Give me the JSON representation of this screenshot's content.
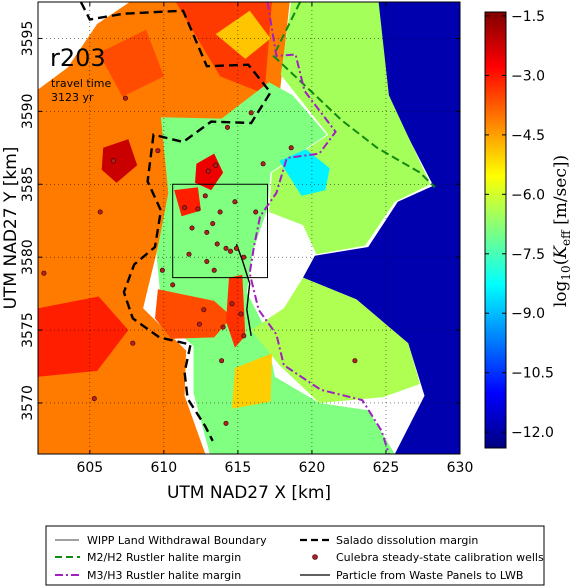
{
  "chart_data": {
    "type": "heatmap",
    "run_label": "r203",
    "annotation_line1": "travel time",
    "annotation_line2": "3123 yr",
    "xlabel": "UTM NAD27 X [km]",
    "ylabel": "UTM NAD27 Y [km]",
    "xlim": [
      601.5,
      630
    ],
    "ylim": [
      3566.5,
      3597.5
    ],
    "xticks": [
      605,
      610,
      615,
      620,
      625,
      630
    ],
    "yticks": [
      3570,
      3575,
      3580,
      3585,
      3590,
      3595
    ],
    "grid": true,
    "colorbar": {
      "label_prefix": "log",
      "label_sub": "10",
      "label_var": "K",
      "label_var_sub": "eff",
      "label_unit": "[m/sec]",
      "min": -12.4,
      "max": -1.4,
      "ticks": [
        -1.5,
        -3.0,
        -4.5,
        -6.0,
        -7.5,
        -9.0,
        -10.5,
        -12.0
      ],
      "tick_labels": [
        "−1.5",
        "−3.0",
        "−4.5",
        "−6.0",
        "−7.5",
        "−9.0",
        "−10.5",
        "−12.0"
      ],
      "colormap": "jet"
    },
    "wipp_boundary": [
      [
        610.6,
        3578.6
      ],
      [
        617.0,
        3578.6
      ],
      [
        617.0,
        3585.0
      ],
      [
        610.6,
        3585.0
      ]
    ],
    "wells": [
      [
        607.4,
        3590.9
      ],
      [
        606.6,
        3586.6
      ],
      [
        609.6,
        3587.3
      ],
      [
        614.3,
        3588.9
      ],
      [
        615.9,
        3589.9
      ],
      [
        612.8,
        3584.2
      ],
      [
        613.0,
        3585.9
      ],
      [
        613.5,
        3586.3
      ],
      [
        612.3,
        3583.3
      ],
      [
        613.8,
        3583.1
      ],
      [
        614.8,
        3583.8
      ],
      [
        616.2,
        3583.1
      ],
      [
        611.4,
        3583.4
      ],
      [
        611.9,
        3582.0
      ],
      [
        612.9,
        3581.7
      ],
      [
        613.6,
        3580.9
      ],
      [
        614.2,
        3580.6
      ],
      [
        614.9,
        3580.6
      ],
      [
        611.7,
        3580.2
      ],
      [
        612.9,
        3579.7
      ],
      [
        613.4,
        3579.1
      ],
      [
        615.4,
        3580.0
      ],
      [
        614.5,
        3580.4
      ],
      [
        605.7,
        3583.1
      ],
      [
        601.9,
        3578.9
      ],
      [
        610.6,
        3578.1
      ],
      [
        612.7,
        3576.4
      ],
      [
        614.6,
        3576.8
      ],
      [
        615.2,
        3576.1
      ],
      [
        615.4,
        3574.6
      ],
      [
        614.0,
        3575.2
      ],
      [
        612.4,
        3575.4
      ],
      [
        607.9,
        3574.1
      ],
      [
        613.9,
        3572.9
      ],
      [
        605.3,
        3570.3
      ],
      [
        614.2,
        3568.6
      ],
      [
        622.9,
        3572.9
      ],
      [
        618.6,
        3587.5
      ],
      [
        616.7,
        3586.4
      ],
      [
        609.9,
        3579.1
      ],
      [
        613.3,
        3582.3
      ]
    ],
    "salado_margin": [
      [
        604.4,
        3597.5
      ],
      [
        605.0,
        3596.3
      ],
      [
        607.3,
        3596.7
      ],
      [
        611.3,
        3596.9
      ],
      [
        612.9,
        3593.1
      ],
      [
        615.7,
        3593.2
      ],
      [
        617.2,
        3591.3
      ],
      [
        615.9,
        3589.2
      ],
      [
        613.2,
        3589.3
      ],
      [
        611.3,
        3587.9
      ],
      [
        609.3,
        3588.4
      ],
      [
        608.9,
        3585.2
      ],
      [
        609.8,
        3583.2
      ],
      [
        609.4,
        3580.7
      ],
      [
        608.0,
        3579.5
      ],
      [
        607.3,
        3577.6
      ],
      [
        607.9,
        3575.8
      ],
      [
        609.7,
        3574.5
      ],
      [
        611.8,
        3574.0
      ],
      [
        611.4,
        3572.1
      ],
      [
        611.6,
        3570.3
      ],
      [
        612.8,
        3568.4
      ],
      [
        613.3,
        3567.4
      ]
    ],
    "m2h2_margin": [
      [
        619.2,
        3597.5
      ],
      [
        617.4,
        3593.8
      ],
      [
        619.5,
        3591.8
      ],
      [
        622.0,
        3589.4
      ],
      [
        624.4,
        3587.5
      ],
      [
        627.3,
        3585.8
      ],
      [
        628.3,
        3584.8
      ]
    ],
    "m3h3_margin": [
      [
        617.0,
        3597.5
      ],
      [
        617.6,
        3593.8
      ],
      [
        618.9,
        3593.9
      ],
      [
        619.5,
        3591.4
      ],
      [
        621.6,
        3588.6
      ],
      [
        620.5,
        3587.1
      ],
      [
        618.3,
        3586.8
      ],
      [
        617.6,
        3584.4
      ],
      [
        616.5,
        3582.8
      ],
      [
        616.1,
        3580.8
      ],
      [
        615.8,
        3578.9
      ],
      [
        616.4,
        3576.4
      ],
      [
        617.6,
        3574.7
      ],
      [
        618.1,
        3572.6
      ],
      [
        620.6,
        3570.9
      ],
      [
        623.4,
        3570.2
      ],
      [
        624.7,
        3568.1
      ],
      [
        625.2,
        3566.5
      ]
    ],
    "particle_path": [
      [
        614.9,
        3580.9
      ],
      [
        615.3,
        3579.8
      ],
      [
        615.8,
        3578.2
      ],
      [
        615.6,
        3576.4
      ],
      [
        615.9,
        3574.6
      ]
    ],
    "legend_placement": "below plot",
    "legend": [
      {
        "label": "WIPP Land Withdrawal Boundary",
        "style": "thin-solid",
        "color": "#000000"
      },
      {
        "label": "Salado dissolution margin",
        "style": "dashed",
        "color": "#000000"
      },
      {
        "label": "M2/H2 Rustler halite margin",
        "style": "dashed",
        "color": "#108a10"
      },
      {
        "label": "Culebra steady-state calibration wells",
        "style": "dot",
        "color": "#b02020"
      },
      {
        "label": "M3/H3 Rustler halite margin",
        "style": "dashdot",
        "color": "#a020c0"
      },
      {
        "label": "Particle from Waste Panels to LWB",
        "style": "solid",
        "color": "#000000"
      }
    ],
    "field_regions": [
      {
        "name": "region-low-k-east",
        "value": -11.9,
        "poly": [
          [
            630,
            3566.5
          ],
          [
            630,
            3597.5
          ],
          [
            624.3,
            3597.5
          ],
          [
            625.1,
            3591.0
          ],
          [
            628.2,
            3584.9
          ],
          [
            625.8,
            3583.8
          ],
          [
            623.8,
            3580.7
          ],
          [
            620.2,
            3580.1
          ],
          [
            619.4,
            3578.6
          ],
          [
            623.0,
            3577.1
          ],
          [
            626.5,
            3574.1
          ],
          [
            627.6,
            3570.5
          ],
          [
            625.6,
            3566.5
          ]
        ]
      },
      {
        "name": "region-west-plain",
        "value": -4.1,
        "poly": [
          [
            601.5,
            3566.5
          ],
          [
            601.5,
            3591.5
          ],
          [
            603.5,
            3593.0
          ],
          [
            605.5,
            3596.0
          ],
          [
            607.7,
            3597.5
          ],
          [
            618.5,
            3597.5
          ],
          [
            617.8,
            3591.0
          ],
          [
            613.8,
            3589.3
          ],
          [
            611.0,
            3584.5
          ],
          [
            609.6,
            3580.7
          ],
          [
            608.6,
            3576.5
          ],
          [
            611.5,
            3573.6
          ],
          [
            611.4,
            3570.5
          ],
          [
            612.8,
            3566.5
          ]
        ]
      },
      {
        "name": "region-north-plateau",
        "value": -3.4,
        "poly": [
          [
            610.8,
            3597.5
          ],
          [
            613.8,
            3592.4
          ],
          [
            616.8,
            3591.2
          ],
          [
            617.3,
            3597.5
          ]
        ]
      },
      {
        "name": "region-central-basin",
        "value": -6.9,
        "poly": [
          [
            609.8,
            3589.6
          ],
          [
            613.9,
            3589.5
          ],
          [
            617.1,
            3592.0
          ],
          [
            618.7,
            3591.1
          ],
          [
            621.0,
            3588.4
          ],
          [
            617.2,
            3585.8
          ],
          [
            617.0,
            3583.3
          ],
          [
            616.0,
            3580.4
          ],
          [
            615.6,
            3577.6
          ],
          [
            616.8,
            3575.2
          ],
          [
            617.5,
            3571.8
          ],
          [
            620.5,
            3570.0
          ],
          [
            623.8,
            3569.5
          ],
          [
            625.6,
            3566.5
          ],
          [
            613.1,
            3566.5
          ],
          [
            612.0,
            3570.7
          ],
          [
            612.0,
            3573.9
          ],
          [
            609.9,
            3575.8
          ],
          [
            609.5,
            3580.2
          ],
          [
            610.3,
            3584.4
          ]
        ]
      },
      {
        "name": "region-east-shelf",
        "value": -6.5,
        "poly": [
          [
            617.1,
            3583.1
          ],
          [
            619.4,
            3582.2
          ],
          [
            620.3,
            3580.2
          ],
          [
            622.0,
            3580.5
          ],
          [
            623.6,
            3580.8
          ],
          [
            625.6,
            3583.8
          ],
          [
            628.0,
            3585.0
          ],
          [
            625.2,
            3591.1
          ],
          [
            624.5,
            3597.5
          ],
          [
            618.6,
            3597.5
          ],
          [
            617.9,
            3592.5
          ],
          [
            621.1,
            3588.4
          ],
          [
            617.3,
            3585.8
          ]
        ]
      },
      {
        "name": "region-southeast-lobe",
        "value": -6.4,
        "poly": [
          [
            615.9,
            3575.0
          ],
          [
            618.1,
            3576.5
          ],
          [
            619.4,
            3578.6
          ],
          [
            623.0,
            3577.1
          ],
          [
            626.5,
            3574.1
          ],
          [
            627.3,
            3571.3
          ],
          [
            624.8,
            3570.4
          ],
          [
            620.5,
            3570.0
          ],
          [
            617.8,
            3572.6
          ]
        ]
      },
      {
        "name": "region-east-dip",
        "value": -8.4,
        "poly": [
          [
            617.8,
            3586.6
          ],
          [
            619.3,
            3584.2
          ],
          [
            620.9,
            3584.6
          ],
          [
            621.2,
            3586.1
          ],
          [
            619.6,
            3587.4
          ]
        ]
      },
      {
        "name": "region-ridge-a",
        "value": -2.6,
        "poly": [
          [
            612.2,
            3586.4
          ],
          [
            613.4,
            3587.1
          ],
          [
            614.0,
            3585.8
          ],
          [
            613.2,
            3584.6
          ],
          [
            612.1,
            3585.1
          ]
        ]
      },
      {
        "name": "region-ridge-b",
        "value": -3.1,
        "poly": [
          [
            610.7,
            3584.6
          ],
          [
            612.3,
            3584.8
          ],
          [
            612.5,
            3583.2
          ],
          [
            611.2,
            3582.8
          ]
        ]
      },
      {
        "name": "region-south-tongue",
        "value": -3.6,
        "poly": [
          [
            609.6,
            3577.8
          ],
          [
            613.4,
            3577.0
          ],
          [
            614.6,
            3575.9
          ],
          [
            613.4,
            3574.5
          ],
          [
            610.5,
            3574.4
          ],
          [
            609.4,
            3575.8
          ]
        ]
      },
      {
        "name": "region-ridge-c",
        "value": -3.3,
        "poly": [
          [
            614.4,
            3578.6
          ],
          [
            615.3,
            3578.8
          ],
          [
            615.5,
            3574.6
          ],
          [
            614.8,
            3573.8
          ],
          [
            614.2,
            3575.6
          ]
        ]
      },
      {
        "name": "region-west-spot",
        "value": -2.2,
        "poly": [
          [
            605.9,
            3587.5
          ],
          [
            607.6,
            3588.1
          ],
          [
            608.2,
            3586.3
          ],
          [
            606.8,
            3585.1
          ],
          [
            605.8,
            3586.0
          ]
        ]
      },
      {
        "name": "region-southwest-warm",
        "value": -3.1,
        "poly": [
          [
            601.5,
            3576.5
          ],
          [
            605.6,
            3577.3
          ],
          [
            607.6,
            3575.0
          ],
          [
            605.5,
            3572.2
          ],
          [
            601.5,
            3571.8
          ]
        ]
      },
      {
        "name": "region-north-flat",
        "value": -4.9,
        "poly": [
          [
            613.5,
            3595.3
          ],
          [
            615.8,
            3596.9
          ],
          [
            617.2,
            3595.0
          ],
          [
            615.5,
            3593.6
          ]
        ]
      },
      {
        "name": "region-west-upland",
        "value": -3.6,
        "poly": [
          [
            605.6,
            3594.0
          ],
          [
            608.8,
            3595.6
          ],
          [
            610.0,
            3592.4
          ],
          [
            607.2,
            3591.0
          ]
        ]
      },
      {
        "name": "region-south-mid",
        "value": -5.0,
        "poly": [
          [
            614.8,
            3572.4
          ],
          [
            617.3,
            3573.4
          ],
          [
            617.2,
            3570.1
          ],
          [
            614.6,
            3569.6
          ]
        ]
      }
    ]
  }
}
